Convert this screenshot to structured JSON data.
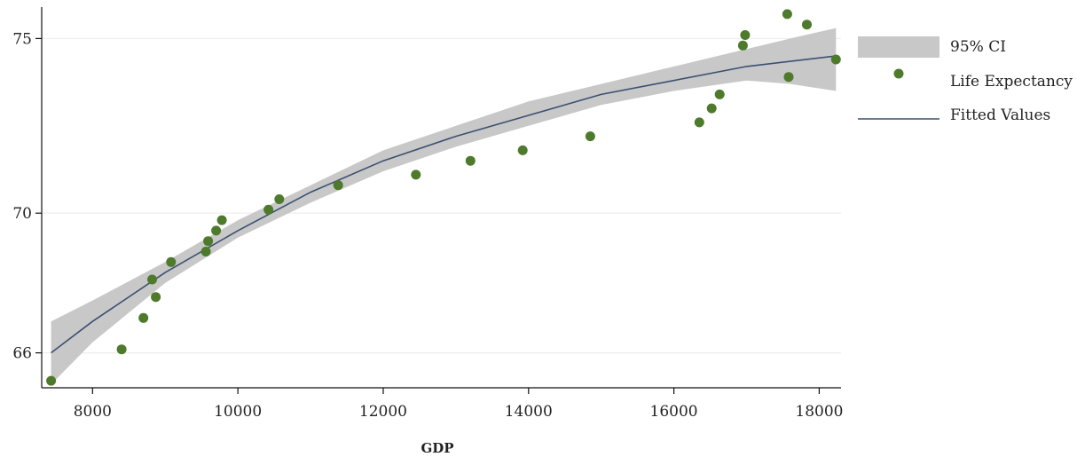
{
  "chart_data": {
    "type": "scatter",
    "title": "",
    "xlabel": "GDP",
    "ylabel": "",
    "xlim": [
      7300,
      18300
    ],
    "ylim": [
      65,
      75.9
    ],
    "x_ticks": [
      8000,
      10000,
      12000,
      14000,
      16000,
      18000
    ],
    "y_ticks": [
      66,
      70,
      75
    ],
    "grid": "horizontal",
    "legend_position": "right",
    "colors": {
      "points": "#4e7a2c",
      "fit_line": "#3b5070",
      "ci_band": "#c8c8c8",
      "grid": "#eeeeee"
    },
    "legend": [
      {
        "key": "ci",
        "label": "95% CI"
      },
      {
        "key": "points",
        "label": "Life Expectancy"
      },
      {
        "key": "fit",
        "label": "Fitted Values"
      }
    ],
    "series": [
      {
        "name": "Life Expectancy",
        "kind": "scatter",
        "points": [
          [
            7430,
            65.2
          ],
          [
            8400,
            66.1
          ],
          [
            8700,
            67.0
          ],
          [
            8820,
            68.1
          ],
          [
            8870,
            67.6
          ],
          [
            9080,
            68.6
          ],
          [
            9560,
            68.9
          ],
          [
            9590,
            69.2
          ],
          [
            9700,
            69.5
          ],
          [
            9780,
            69.8
          ],
          [
            10420,
            70.1
          ],
          [
            10570,
            70.4
          ],
          [
            11380,
            70.8
          ],
          [
            12450,
            71.1
          ],
          [
            13200,
            71.5
          ],
          [
            13920,
            71.8
          ],
          [
            14850,
            72.2
          ],
          [
            16350,
            72.6
          ],
          [
            16520,
            73.0
          ],
          [
            16630,
            73.4
          ],
          [
            16950,
            74.8
          ],
          [
            16980,
            75.1
          ],
          [
            17560,
            75.7
          ],
          [
            17580,
            73.9
          ],
          [
            17830,
            75.4
          ],
          [
            18230,
            74.4
          ]
        ]
      },
      {
        "name": "Fitted Values",
        "kind": "line",
        "points": [
          [
            7430,
            66.0
          ],
          [
            8000,
            66.9
          ],
          [
            9000,
            68.3
          ],
          [
            10000,
            69.5
          ],
          [
            11000,
            70.6
          ],
          [
            12000,
            71.5
          ],
          [
            13000,
            72.2
          ],
          [
            14000,
            72.8
          ],
          [
            15000,
            73.4
          ],
          [
            16000,
            73.8
          ],
          [
            17000,
            74.2
          ],
          [
            18230,
            74.5
          ]
        ]
      },
      {
        "name": "95% CI",
        "kind": "band",
        "x": [
          7430,
          8000,
          9000,
          10000,
          11000,
          12000,
          13000,
          14000,
          15000,
          16000,
          17000,
          17600,
          18230
        ],
        "lower": [
          65.1,
          66.3,
          68.0,
          69.3,
          70.3,
          71.2,
          71.9,
          72.5,
          73.1,
          73.5,
          73.8,
          73.7,
          73.5
        ],
        "upper": [
          66.9,
          67.5,
          68.6,
          69.8,
          70.8,
          71.8,
          72.5,
          73.2,
          73.7,
          74.2,
          74.7,
          75.0,
          75.3
        ]
      }
    ]
  }
}
